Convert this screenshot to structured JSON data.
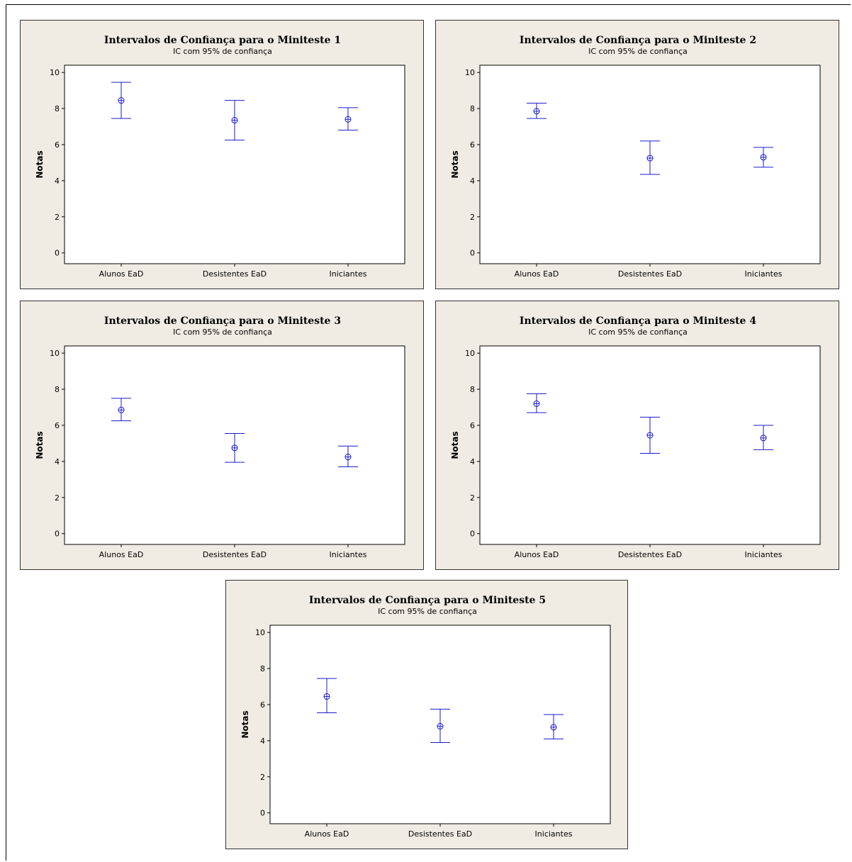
{
  "chart_data": [
    {
      "type": "interval",
      "title": "Intervalos de Confiança para o Miniteste 1",
      "subtitle": "IC com 95% de confiança",
      "ylabel": "Notas",
      "ylim": [
        -0.6,
        10.4
      ],
      "yticks": [
        0,
        2,
        4,
        6,
        8,
        10
      ],
      "categories": [
        "Alunos EaD",
        "Desistentes EaD",
        "Iniciantes"
      ],
      "means": [
        8.45,
        7.35,
        7.4
      ],
      "lower": [
        7.45,
        6.25,
        6.8
      ],
      "upper": [
        9.45,
        8.45,
        8.05
      ],
      "color": "#1a1acc"
    },
    {
      "type": "interval",
      "title": "Intervalos de Confiança para o Miniteste 2",
      "subtitle": "IC com 95% de confiança",
      "ylabel": "Notas",
      "ylim": [
        -0.6,
        10.4
      ],
      "yticks": [
        0,
        2,
        4,
        6,
        8,
        10
      ],
      "categories": [
        "Alunos EaD",
        "Desistentes EaD",
        "Iniciantes"
      ],
      "means": [
        7.85,
        5.25,
        5.3
      ],
      "lower": [
        7.45,
        4.35,
        4.75
      ],
      "upper": [
        8.3,
        6.2,
        5.85
      ],
      "color": "#1a1acc"
    },
    {
      "type": "interval",
      "title": "Intervalos de Confiança para o Miniteste 3",
      "subtitle": "IC com 95% de confiança",
      "ylabel": "Notas",
      "ylim": [
        -0.6,
        10.4
      ],
      "yticks": [
        0,
        2,
        4,
        6,
        8,
        10
      ],
      "categories": [
        "Alunos EaD",
        "Desistentes EaD",
        "Iniciantes"
      ],
      "means": [
        6.85,
        4.75,
        4.25
      ],
      "lower": [
        6.25,
        3.95,
        3.7
      ],
      "upper": [
        7.5,
        5.55,
        4.85
      ],
      "color": "#1a1acc"
    },
    {
      "type": "interval",
      "title": "Intervalos de Confiança para o Miniteste 4",
      "subtitle": "IC com 95% de confiança",
      "ylabel": "Notas",
      "ylim": [
        -0.6,
        10.4
      ],
      "yticks": [
        0,
        2,
        4,
        6,
        8,
        10
      ],
      "categories": [
        "Alunos EaD",
        "Desistentes EaD",
        "Iniciantes"
      ],
      "means": [
        7.2,
        5.45,
        5.3
      ],
      "lower": [
        6.7,
        4.45,
        4.65
      ],
      "upper": [
        7.75,
        6.45,
        6.0
      ],
      "color": "#1a1acc"
    },
    {
      "type": "interval",
      "title": "Intervalos de Confiança para o Miniteste 5",
      "subtitle": "IC com 95% de confiança",
      "ylabel": "Notas",
      "ylim": [
        -0.6,
        10.4
      ],
      "yticks": [
        0,
        2,
        4,
        6,
        8,
        10
      ],
      "categories": [
        "Alunos EaD",
        "Desistentes EaD",
        "Iniciantes"
      ],
      "means": [
        6.45,
        4.8,
        4.75
      ],
      "lower": [
        5.55,
        3.9,
        4.1
      ],
      "upper": [
        7.45,
        5.75,
        5.45
      ],
      "color": "#1a1acc"
    }
  ]
}
